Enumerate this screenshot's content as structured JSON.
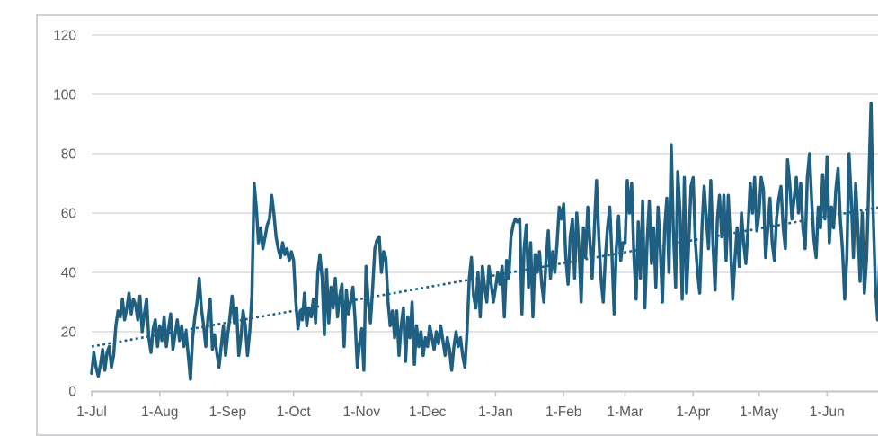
{
  "chart_data": {
    "type": "line",
    "title": "",
    "legend": "none",
    "grid": true,
    "colors": {
      "series": "#1e5f82",
      "trendline": "#1e5f82",
      "gridline": "#d9d9d9",
      "axis": "#c6c6c6",
      "tick": "#c6c6c6",
      "label": "#595959",
      "frame_border": "#d2d2d6",
      "background": "#ffffff"
    },
    "y_axis": {
      "ticks": [
        0,
        20,
        40,
        60,
        80,
        100,
        120
      ],
      "range": [
        0,
        120
      ]
    },
    "x_axis": {
      "tick_labels": [
        "1-Jul",
        "1-Aug",
        "1-Sep",
        "1-Oct",
        "1-Nov",
        "1-Dec",
        "1-Jan",
        "1-Feb",
        "1-Mar",
        "1-Apr",
        "1-May",
        "1-Jun"
      ],
      "month_start_days": [
        0,
        31,
        62,
        92,
        123,
        153,
        184,
        215,
        243,
        274,
        304,
        335,
        365
      ]
    },
    "series": [
      {
        "name": "daily-values",
        "style": "solid",
        "values": [
          6,
          13,
          8,
          5,
          9,
          14,
          7,
          13,
          15,
          8,
          12,
          22,
          27,
          25,
          31,
          24,
          28,
          33,
          26,
          31,
          29,
          24,
          32,
          20,
          26,
          31,
          18,
          13,
          21,
          24,
          15,
          22,
          17,
          25,
          15,
          21,
          26,
          14,
          19,
          24,
          17,
          22,
          15,
          20,
          12,
          4,
          18,
          25,
          30,
          38,
          28,
          22,
          15,
          25,
          31,
          14,
          19,
          13,
          8,
          15,
          22,
          12,
          19,
          25,
          32,
          23,
          28,
          12,
          18,
          27,
          22,
          12,
          20,
          32,
          70,
          62,
          50,
          55,
          48,
          52,
          56,
          58,
          66,
          60,
          52,
          48,
          45,
          50,
          46,
          48,
          44,
          47,
          44,
          30,
          21,
          27,
          24,
          33,
          22,
          28,
          25,
          31,
          23,
          40,
          46,
          38,
          19,
          41,
          23,
          35,
          28,
          38,
          25,
          32,
          36,
          15,
          34,
          26,
          30,
          35,
          24,
          8,
          16,
          21,
          7,
          42,
          30,
          23,
          35,
          48,
          51,
          52,
          40,
          47,
          45,
          30,
          22,
          27,
          18,
          27,
          12,
          22,
          28,
          10,
          25,
          18,
          30,
          9,
          22,
          15,
          20,
          12,
          18,
          15,
          22,
          18,
          14,
          20,
          16,
          22,
          17,
          12,
          18,
          14,
          7,
          15,
          20,
          15,
          18,
          12,
          8,
          20,
          38,
          45,
          32,
          28,
          40,
          25,
          42,
          35,
          30,
          42,
          36,
          30,
          35,
          40,
          36,
          42,
          25,
          44,
          38,
          52,
          56,
          58,
          57,
          58,
          26,
          48,
          56,
          35,
          50,
          25,
          46,
          40,
          47,
          36,
          30,
          44,
          54,
          38,
          47,
          40,
          50,
          62,
          58,
          63,
          45,
          36,
          52,
          58,
          38,
          60,
          48,
          30,
          55,
          45,
          62,
          50,
          38,
          55,
          71,
          52,
          38,
          30,
          45,
          55,
          62,
          46,
          26,
          48,
          59,
          44,
          50,
          50,
          71,
          60,
          70,
          45,
          31,
          57,
          38,
          64,
          28,
          50,
          64,
          43,
          55,
          35,
          62,
          48,
          30,
          55,
          65,
          40,
          83,
          54,
          35,
          74,
          60,
          31,
          72,
          33,
          50,
          69,
          72,
          50,
          40,
          33,
          55,
          69,
          58,
          48,
          71,
          50,
          34,
          58,
          66,
          52,
          66,
          44,
          66,
          50,
          31,
          44,
          55,
          42,
          60,
          50,
          43,
          55,
          70,
          60,
          72,
          54,
          60,
          72,
          68,
          45,
          55,
          65,
          50,
          44,
          58,
          65,
          69,
          55,
          48,
          78,
          70,
          58,
          65,
          72,
          60,
          70,
          55,
          48,
          72,
          80,
          64,
          51,
          45,
          62,
          55,
          73,
          58,
          79,
          50,
          62,
          55,
          68,
          75,
          58,
          48,
          31,
          45,
          80,
          65,
          45,
          70,
          55,
          37,
          60,
          33,
          45,
          70,
          97,
          60,
          35,
          24,
          45,
          55,
          70,
          72,
          72
        ]
      },
      {
        "name": "linear-trendline",
        "style": "dotted",
        "start_value": 15,
        "end_value": 62.5
      }
    ]
  }
}
